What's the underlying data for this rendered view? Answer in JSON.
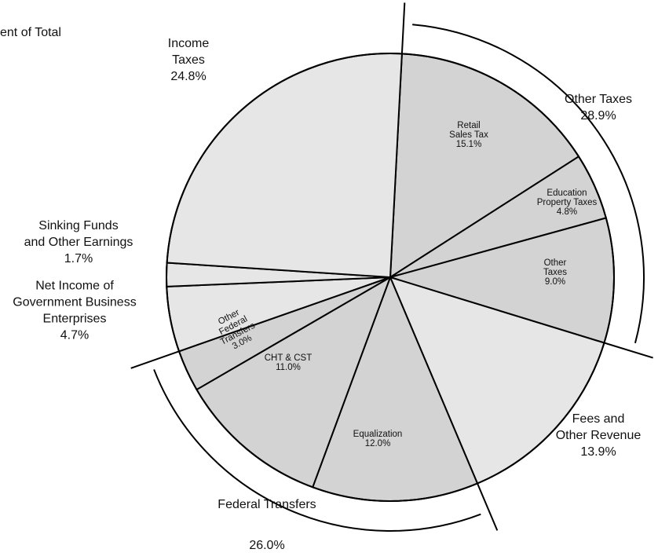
{
  "chart_data": {
    "type": "pie",
    "title": "ent of Total",
    "labels": [
      [
        "Retail",
        "Sales Tax"
      ],
      [
        "Education",
        "Property Taxes"
      ],
      [
        "Other",
        "Taxes"
      ],
      [
        "Fees and",
        "Other Revenue"
      ],
      [
        "Equalization"
      ],
      [
        "CHT & CST"
      ],
      [
        "Other",
        "Federal",
        "Transfers"
      ],
      [
        "Net Income of",
        "Government Business",
        "Enterprises"
      ],
      [
        "Sinking Funds",
        "and Other Earnings"
      ],
      [
        "Income",
        "Taxes"
      ]
    ],
    "values": [
      15.1,
      4.8,
      9.0,
      13.9,
      12.0,
      11.0,
      3.0,
      4.7,
      1.7,
      24.8
    ],
    "value_labels": [
      "15.1%",
      "4.8%",
      "9.0%",
      "13.9%",
      "12.0%",
      "11.0%",
      "3.0%",
      "4.7%",
      "1.7%",
      "24.8%"
    ],
    "colors": [
      "#d3d3d3",
      "#d3d3d3",
      "#d3d3d3",
      "#e6e6e6",
      "#d3d3d3",
      "#d3d3d3",
      "#d3d3d3",
      "#e6e6e6",
      "#e6e6e6",
      "#e6e6e6"
    ],
    "groups": [
      {
        "name": "Other Taxes",
        "value": 28.9,
        "value_label": "28.9%",
        "slices": [
          0,
          2
        ]
      },
      {
        "name": "Federal Transfers",
        "value": 26.0,
        "value_label": "26.0%",
        "slices": [
          4,
          6
        ]
      }
    ]
  }
}
